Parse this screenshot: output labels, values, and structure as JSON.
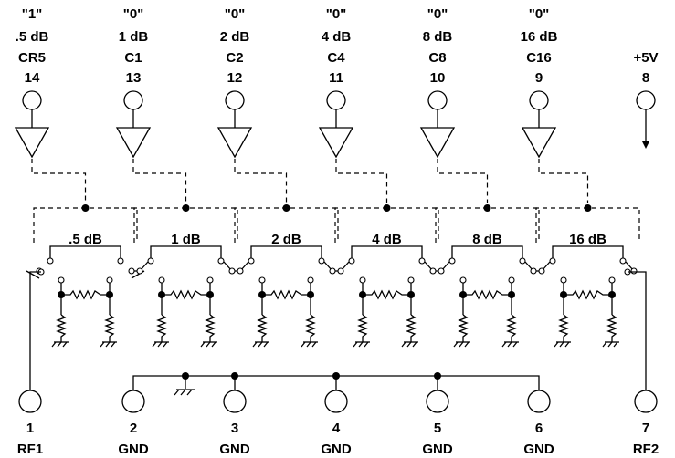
{
  "control_pins": [
    {
      "state": "\"1\"",
      "attenuation": ".5 dB",
      "signal": "CR5",
      "pin": "14"
    },
    {
      "state": "\"0\"",
      "attenuation": "1 dB",
      "signal": "C1",
      "pin": "13"
    },
    {
      "state": "\"0\"",
      "attenuation": "2 dB",
      "signal": "C2",
      "pin": "12"
    },
    {
      "state": "\"0\"",
      "attenuation": "4 dB",
      "signal": "C4",
      "pin": "11"
    },
    {
      "state": "\"0\"",
      "attenuation": "8 dB",
      "signal": "C8",
      "pin": "10"
    },
    {
      "state": "\"0\"",
      "attenuation": "16 dB",
      "signal": "C16",
      "pin": "9"
    }
  ],
  "supply_pin": {
    "signal": "+5V",
    "pin": "8"
  },
  "stages": [
    {
      "label": ".5 dB",
      "state": "1"
    },
    {
      "label": "1 dB",
      "state": "0"
    },
    {
      "label": "2 dB",
      "state": "0"
    },
    {
      "label": "4 dB",
      "state": "0"
    },
    {
      "label": "8 dB",
      "state": "0"
    },
    {
      "label": "16 dB",
      "state": "0"
    }
  ],
  "bottom_pins": [
    {
      "pin": "1",
      "name": "RF1"
    },
    {
      "pin": "2",
      "name": "GND"
    },
    {
      "pin": "3",
      "name": "GND"
    },
    {
      "pin": "4",
      "name": "GND"
    },
    {
      "pin": "5",
      "name": "GND"
    },
    {
      "pin": "6",
      "name": "GND"
    },
    {
      "pin": "7",
      "name": "RF2"
    }
  ]
}
